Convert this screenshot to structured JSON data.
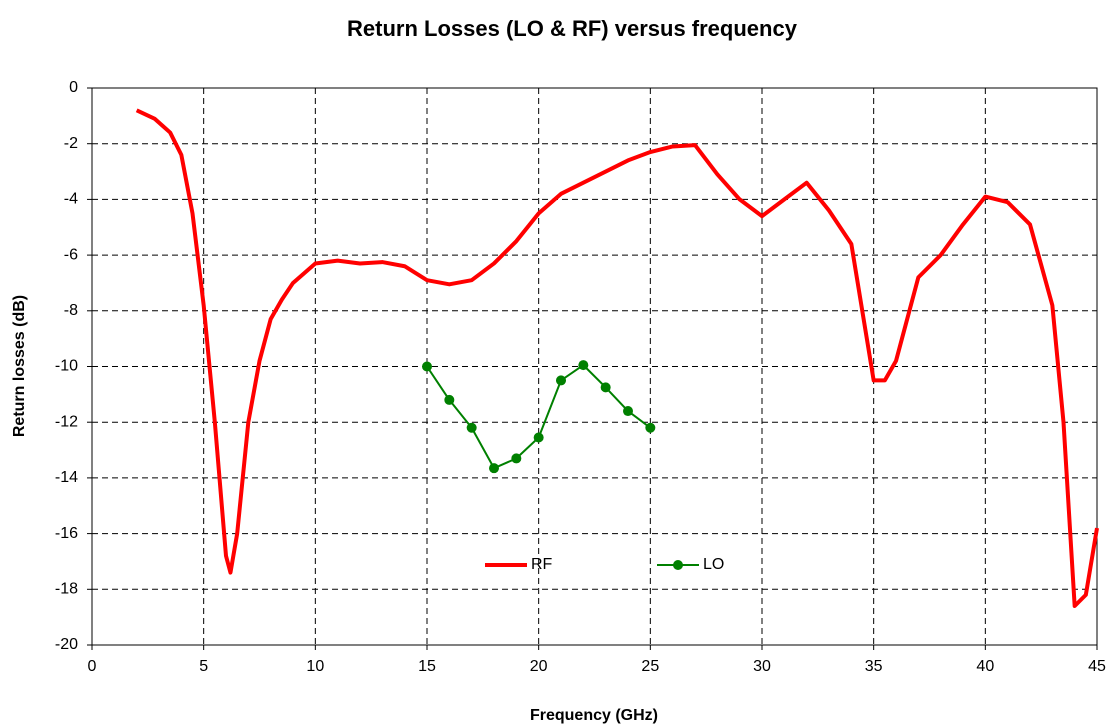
{
  "chart_data": {
    "type": "line",
    "title": "Return Losses (LO & RF) versus frequency",
    "x_label": "Frequency (GHz)",
    "y_label": "Return losses (dB)",
    "xlim": [
      0,
      45
    ],
    "xticks": [
      0,
      5,
      10,
      15,
      20,
      25,
      30,
      35,
      40,
      45
    ],
    "ylim": [
      -20,
      0
    ],
    "yticks": [
      0,
      -2,
      -4,
      -6,
      -8,
      -10,
      -12,
      -14,
      -16,
      -18,
      -20
    ],
    "grid": true,
    "series": [
      {
        "name": "RF",
        "color": "#ff0000",
        "markers": false,
        "x": [
          2,
          2.8,
          3.5,
          4,
          4.5,
          5,
          5.5,
          6,
          6.2,
          6.5,
          7,
          7.5,
          8,
          8.5,
          9,
          10,
          11,
          12,
          13,
          14,
          15,
          16,
          17,
          18,
          19,
          20,
          21,
          22,
          23,
          24,
          25,
          26,
          27,
          28,
          29,
          30,
          31,
          32,
          33,
          34,
          35,
          35.5,
          36,
          37,
          38,
          39,
          40,
          41,
          42,
          43,
          43.5,
          44,
          44.5,
          45
        ],
        "values": [
          -0.8,
          -1.1,
          -1.6,
          -2.4,
          -4.5,
          -7.8,
          -12,
          -16.8,
          -17.4,
          -16,
          -12,
          -9.8,
          -8.3,
          -7.6,
          -7.0,
          -6.3,
          -6.2,
          -6.3,
          -6.25,
          -6.4,
          -6.9,
          -7.05,
          -6.9,
          -6.3,
          -5.5,
          -4.5,
          -3.8,
          -3.4,
          -3.0,
          -2.6,
          -2.3,
          -2.1,
          -2.05,
          -3.1,
          -4.0,
          -4.6,
          -4.0,
          -3.4,
          -4.4,
          -5.6,
          -10.5,
          -10.5,
          -9.8,
          -6.8,
          -6.0,
          -4.9,
          -3.9,
          -4.1,
          -4.9,
          -7.8,
          -12,
          -18.6,
          -18.2,
          -15.8
        ]
      },
      {
        "name": "LO",
        "color": "#008000",
        "markers": true,
        "x": [
          15,
          16,
          17,
          18,
          19,
          20,
          21,
          22,
          23,
          24,
          25
        ],
        "values": [
          -10,
          -11.2,
          -12.2,
          -13.65,
          -13.3,
          -12.55,
          -10.5,
          -9.95,
          -10.75,
          -11.6,
          -12.2
        ]
      }
    ]
  }
}
